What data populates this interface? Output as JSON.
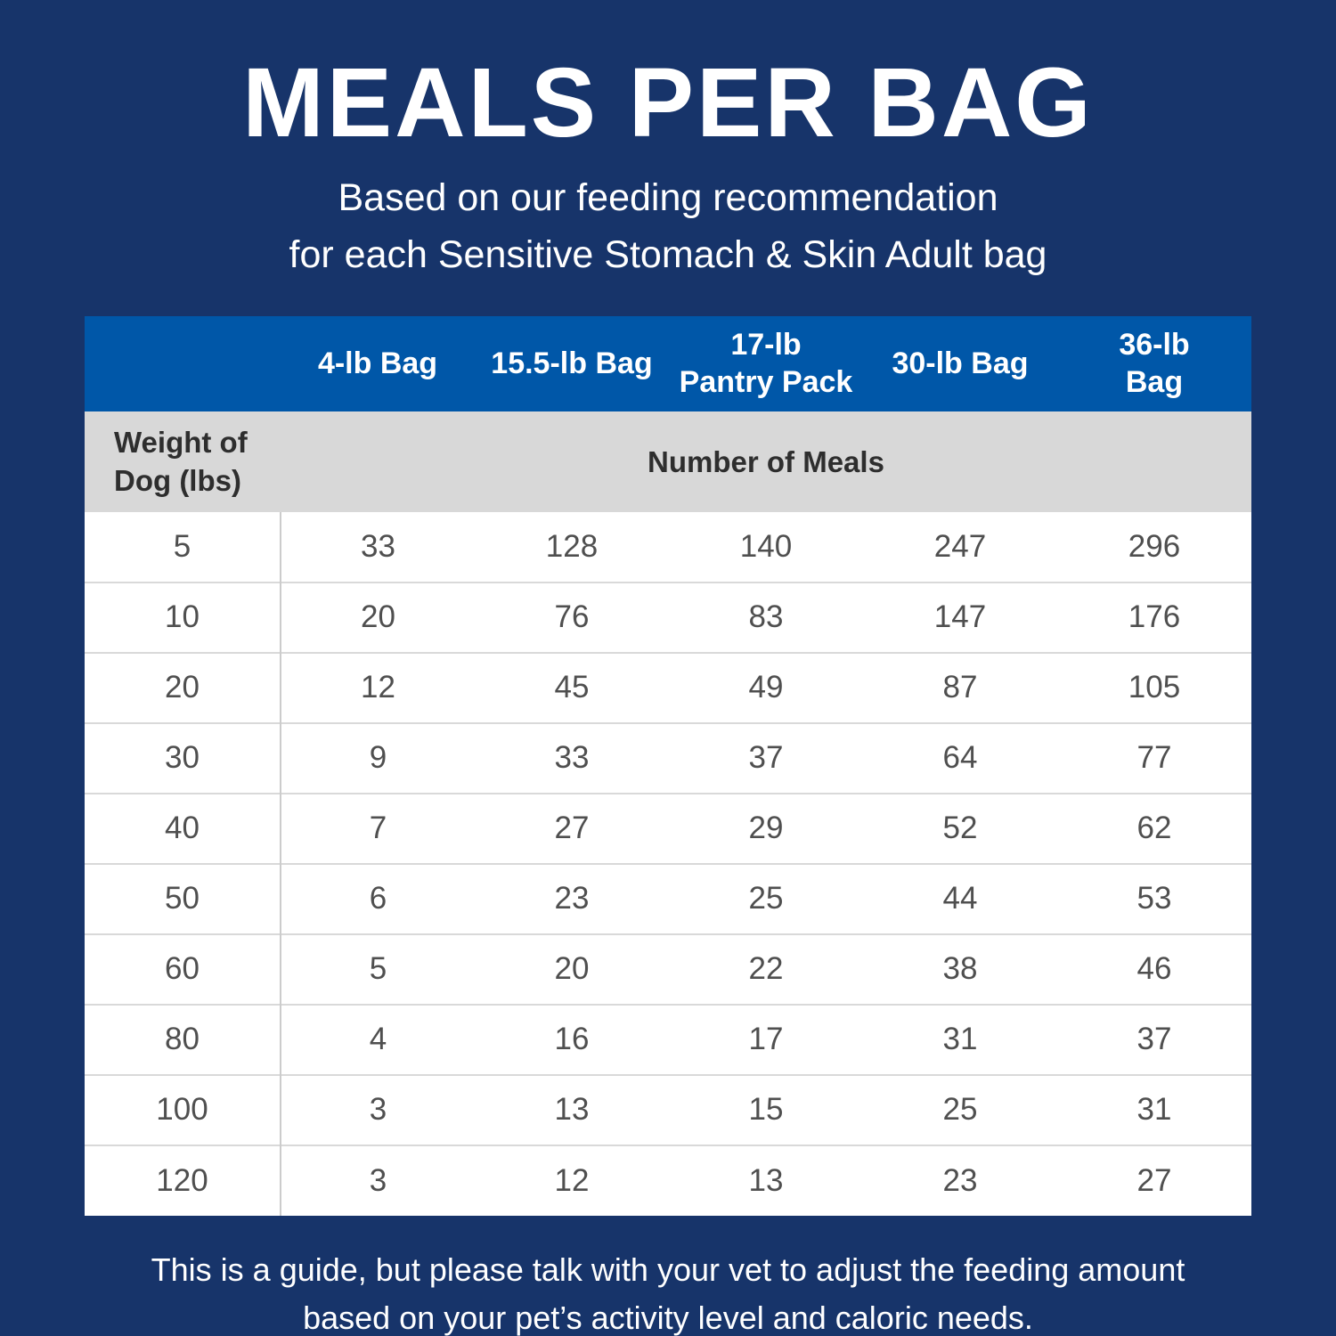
{
  "colors": {
    "background": "#17346a",
    "header_blue": "#0057a8",
    "subheader_gray": "#d8d8d8",
    "row_bg": "#ffffff",
    "cell_text": "#4f4f4f",
    "title_text": "#ffffff"
  },
  "chart_data": {
    "type": "table",
    "title": "MEALS PER BAG",
    "subtitle_lines": [
      "Based on our feeding recommendation",
      "for each Sensitive Stomach & Skin Adult bag"
    ],
    "columns": [
      "4-lb Bag",
      "15.5-lb Bag",
      "17-lb\nPantry Pack",
      "30-lb Bag",
      "36-lb\nBag"
    ],
    "row_header": "Weight of\nDog (lbs)",
    "values_header": "Number of Meals",
    "weights": [
      5,
      10,
      20,
      30,
      40,
      50,
      60,
      80,
      100,
      120
    ],
    "rows": [
      [
        33,
        128,
        140,
        247,
        296
      ],
      [
        20,
        76,
        83,
        147,
        176
      ],
      [
        12,
        45,
        49,
        87,
        105
      ],
      [
        9,
        33,
        37,
        64,
        77
      ],
      [
        7,
        27,
        29,
        52,
        62
      ],
      [
        6,
        23,
        25,
        44,
        53
      ],
      [
        5,
        20,
        22,
        38,
        46
      ],
      [
        4,
        16,
        17,
        31,
        37
      ],
      [
        3,
        13,
        15,
        25,
        31
      ],
      [
        3,
        12,
        13,
        23,
        27
      ]
    ],
    "footnote_lines": [
      "This is a guide, but please talk with your vet to adjust the feeding amount",
      "based on your pet’s activity level and caloric needs."
    ]
  }
}
